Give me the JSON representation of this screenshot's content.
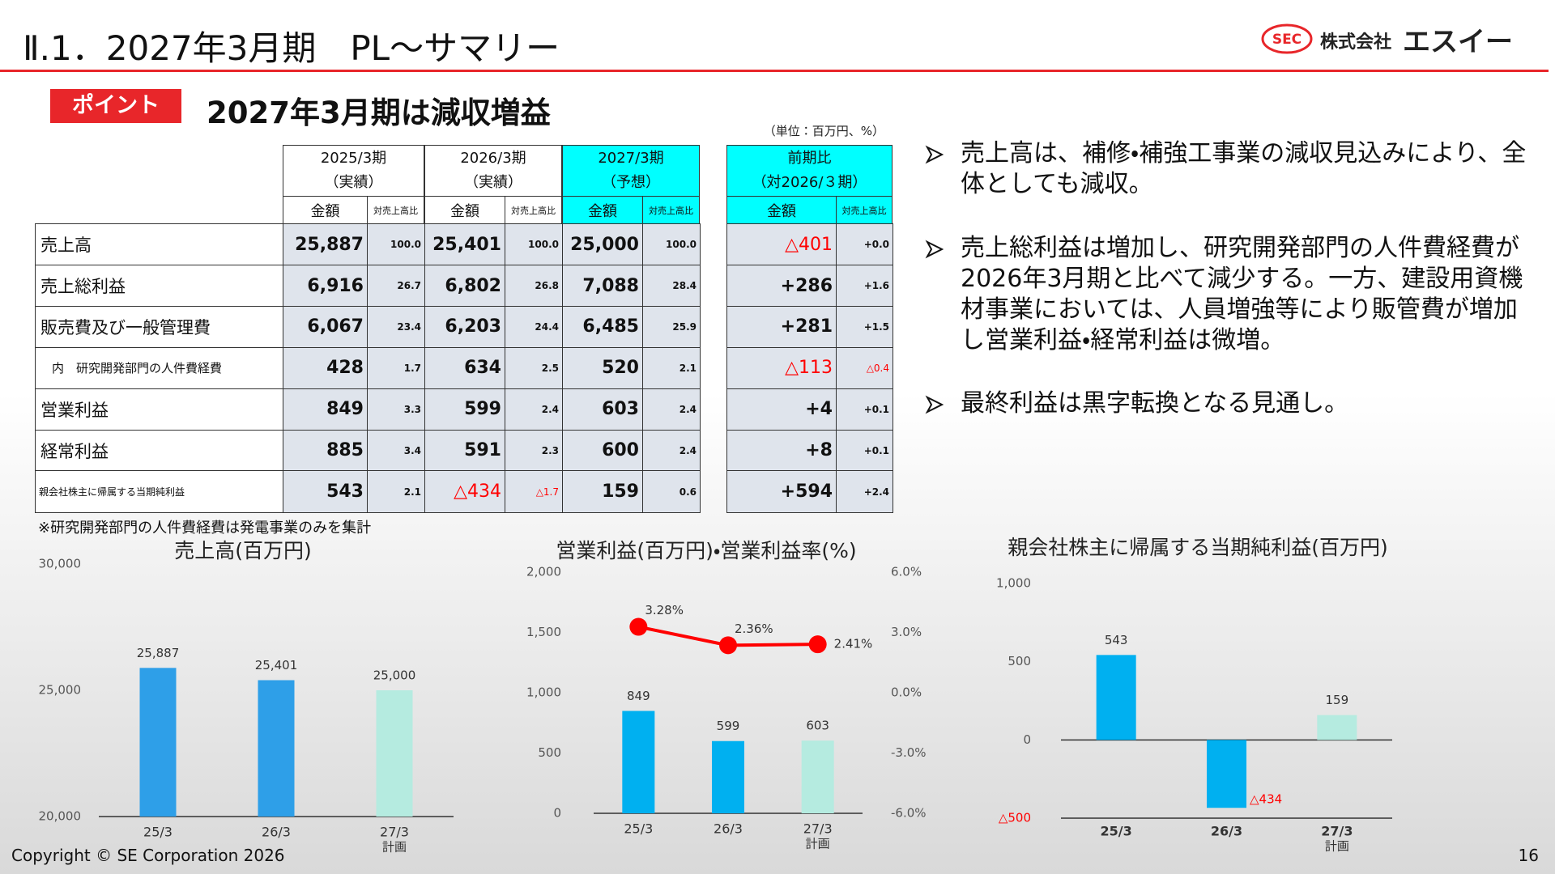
{
  "header": {
    "title": "Ⅱ.1．2027年3月期　PL～サマリー",
    "logo_mark": "SEC",
    "company_prefix": "株式会社",
    "company_name": "エスイー"
  },
  "point": {
    "label": "ポイント",
    "text": "2027年3月期は減収増益"
  },
  "table": {
    "unit": "（単位：百万円、%）",
    "groups": [
      {
        "period": "2025/3期",
        "kind": "（実績）",
        "amount": "金額",
        "ratio": "対売上高比"
      },
      {
        "period": "2026/3期",
        "kind": "（実績）",
        "amount": "金額",
        "ratio": "対売上高比"
      },
      {
        "period": "2027/3期",
        "kind": "（予想）",
        "amount": "金額",
        "ratio": "対売上高比"
      },
      {
        "period": "前期比",
        "kind": "（対2026/３期）",
        "amount": "金額",
        "ratio": "対売上高比"
      }
    ],
    "rows": [
      {
        "label": "売上高",
        "cells": [
          "25,887",
          "100.0",
          "25,401",
          "100.0",
          "25,000",
          "100.0",
          "△401",
          "+0.0"
        ]
      },
      {
        "label": "売上総利益",
        "cells": [
          "6,916",
          "26.7",
          "6,802",
          "26.8",
          "7,088",
          "28.4",
          "+286",
          "+1.6"
        ]
      },
      {
        "label": "販売費及び一般管理費",
        "cells": [
          "6,067",
          "23.4",
          "6,203",
          "24.4",
          "6,485",
          "25.9",
          "+281",
          "+1.5"
        ]
      },
      {
        "label": "内　研究開発部門の人件費経費",
        "cells": [
          "428",
          "1.7",
          "634",
          "2.5",
          "520",
          "2.1",
          "△113",
          "△0.4"
        ]
      },
      {
        "label": "営業利益",
        "cells": [
          "849",
          "3.3",
          "599",
          "2.4",
          "603",
          "2.4",
          "+4",
          "+0.1"
        ]
      },
      {
        "label": "経常利益",
        "cells": [
          "885",
          "3.4",
          "591",
          "2.3",
          "600",
          "2.4",
          "+8",
          "+0.1"
        ]
      },
      {
        "label": "親会社株主に帰属する当期純利益",
        "cells": [
          "543",
          "2.1",
          "△434",
          "△1.7",
          "159",
          "0.6",
          "+594",
          "+2.4"
        ]
      }
    ],
    "footnote": "※研究開発部門の人件費経費は発電事業のみを集計"
  },
  "bullets": [
    "売上高は、補修・補強工事業の減収見込みにより、全体としても減収。",
    "売上総利益は増加し、研究開発部門の人件費経費が2026年3月期と比べて減少する。一方、建設用資機材事業においては、人員増強等により販管費が増加し営業利益・経常利益は微増。",
    "最終利益は黒字転換となる見通し。"
  ],
  "chart_data": [
    {
      "type": "bar",
      "title": "売上高(百万円)",
      "categories": [
        "25/3",
        "26/3",
        "27/3"
      ],
      "category_notes": [
        null,
        null,
        "計画"
      ],
      "values": [
        25887,
        25401,
        25000
      ],
      "value_labels": [
        "25,887",
        "25,401",
        "25,000"
      ],
      "colors": [
        "#2e9fe8",
        "#2e9fe8",
        "#b5ebe0"
      ],
      "ylim": [
        20000,
        30000
      ],
      "yticks": [
        {
          "value": 20000,
          "label": "20,000"
        },
        {
          "value": 25000,
          "label": "25,000"
        },
        {
          "value": 30000,
          "label": "30,000"
        }
      ]
    },
    {
      "type": "bar_line",
      "title": "営業利益(百万円)・営業利益率(%)",
      "categories": [
        "25/3",
        "26/3",
        "27/3"
      ],
      "category_notes": [
        null,
        null,
        "計画"
      ],
      "values": [
        849,
        599,
        603
      ],
      "colors": [
        "#00b0f0",
        "#00b0f0",
        "#b5ebe0"
      ],
      "ylim": [
        0,
        2000
      ],
      "yticks": [
        0,
        500,
        {
          "value": 1000,
          "label": "1,000"
        },
        {
          "value": 1500,
          "label": "1,500"
        },
        {
          "value": 2000,
          "label": "2,000"
        }
      ],
      "series": [
        {
          "color": "#ff0000",
          "values": [
            3.28,
            2.36,
            2.41
          ],
          "value_labels": [
            "3.28%",
            "2.36%",
            "2.41%"
          ],
          "axis": "y2"
        }
      ],
      "y2lim": [
        -6,
        6
      ],
      "y2ticks": [
        {
          "value": -6,
          "label": "-6.0%"
        },
        {
          "value": -3,
          "label": "-3.0%"
        },
        {
          "value": 0,
          "label": "0.0%"
        },
        {
          "value": 3,
          "label": "3.0%"
        },
        {
          "value": 6,
          "label": "6.0%"
        }
      ]
    },
    {
      "type": "bar",
      "title": "親会社株主に帰属する当期純利益(百万円)",
      "categories": [
        "25/3",
        "26/3",
        "27/3"
      ],
      "category_notes": [
        null,
        null,
        "計画"
      ],
      "values": [
        543,
        -434,
        159
      ],
      "value_labels": [
        "543",
        "△434",
        "159"
      ],
      "colors": [
        "#00b0f0",
        "#00b0f0",
        "#b5ebe0"
      ],
      "ylim": [
        -500,
        1000
      ],
      "yticks": [
        {
          "value": -500,
          "label": "△500"
        },
        0,
        500,
        {
          "value": 1000,
          "label": "1,000"
        }
      ]
    }
  ],
  "footer": {
    "copyright": "Copyright © SE Corporation 2026",
    "page": "16"
  }
}
